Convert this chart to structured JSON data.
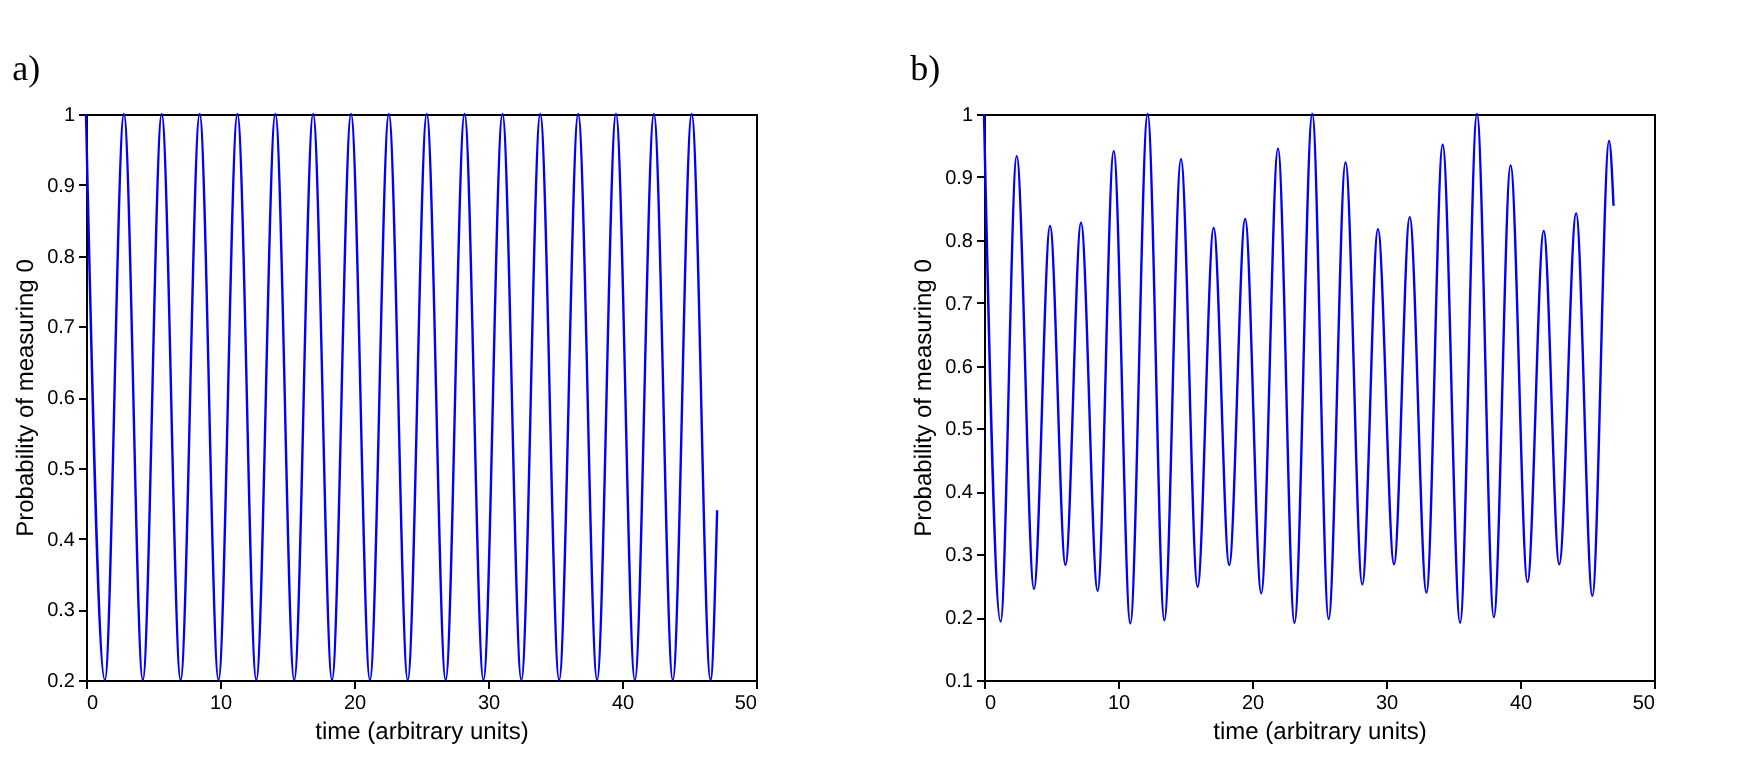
{
  "chart_data": [
    {
      "type": "line",
      "title": "a)",
      "xlabel": "time (arbitrary units)",
      "ylabel": "Probability of measuring 0",
      "xlim": [
        0,
        50
      ],
      "xticks": [
        0,
        10,
        20,
        30,
        40,
        50
      ],
      "ylim": [
        0.2,
        1
      ],
      "yticks": [
        0.2,
        0.3,
        0.4,
        0.5,
        0.6,
        0.7,
        0.8,
        0.9,
        1
      ],
      "x": [
        0,
        1.41,
        2.83,
        4.24,
        5.65,
        7.06,
        8.48,
        9.89,
        11.3,
        12.71,
        14.13,
        15.54,
        16.95,
        18.36,
        19.78,
        21.19,
        22.6,
        24.01,
        25.43,
        26.84,
        28.25,
        29.66,
        31.08,
        32.49,
        33.9,
        35.31,
        36.73,
        38.14,
        39.55,
        40.96,
        42.38,
        43.79,
        45.2,
        46.61,
        47.1
      ],
      "series": [
        {
          "color": "#0000ff",
          "values": [
            1,
            0.2,
            1,
            0.2,
            1,
            0.2,
            1,
            0.2,
            1,
            0.2,
            1,
            0.2,
            1,
            0.2,
            1,
            0.2,
            1,
            0.2,
            1,
            0.2,
            1,
            0.2,
            1,
            0.2,
            1,
            0.2,
            1,
            0.2,
            1,
            0.2,
            1,
            0.2,
            1,
            0.2,
            0.44
          ]
        }
      ]
    },
    {
      "type": "line",
      "title": "b)",
      "xlabel": "time (arbitrary units)",
      "ylabel": "Probability of measuring 0",
      "xlim": [
        0,
        50
      ],
      "xticks": [
        0,
        10,
        20,
        30,
        40,
        50
      ],
      "ylim": [
        0.1,
        1
      ],
      "yticks": [
        0.1,
        0.2,
        0.3,
        0.4,
        0.5,
        0.6,
        0.7,
        0.8,
        0.9,
        1
      ],
      "x": [
        0,
        1.24,
        2.44,
        3.73,
        4.93,
        6.08,
        7.24,
        8.48,
        9.68,
        10.92,
        12.21,
        13.46,
        14.7,
        15.94,
        17.14,
        18.3,
        19.49,
        20.69,
        21.94,
        23.17,
        24.5,
        25.72,
        26.98,
        28.23,
        29.4,
        30.6,
        31.77,
        33.02,
        34.23,
        35.53,
        36.79,
        38.05,
        39.3,
        40.56,
        41.77,
        42.93,
        44.19,
        45.4,
        46.65,
        46.98
      ],
      "series": [
        {
          "color": "#0000ff",
          "values": [
            1,
            0.193,
            0.933,
            0.245,
            0.822,
            0.283,
            0.827,
            0.242,
            0.941,
            0.19,
            1,
            0.195,
            0.928,
            0.248,
            0.819,
            0.283,
            0.833,
            0.238,
            0.945,
            0.191,
            1,
            0.197,
            0.923,
            0.252,
            0.817,
            0.284,
            0.836,
            0.239,
            0.951,
            0.191,
            1,
            0.2,
            0.918,
            0.256,
            0.814,
            0.284,
            0.842,
            0.234,
            0.957,
            0.854
          ]
        }
      ]
    }
  ]
}
